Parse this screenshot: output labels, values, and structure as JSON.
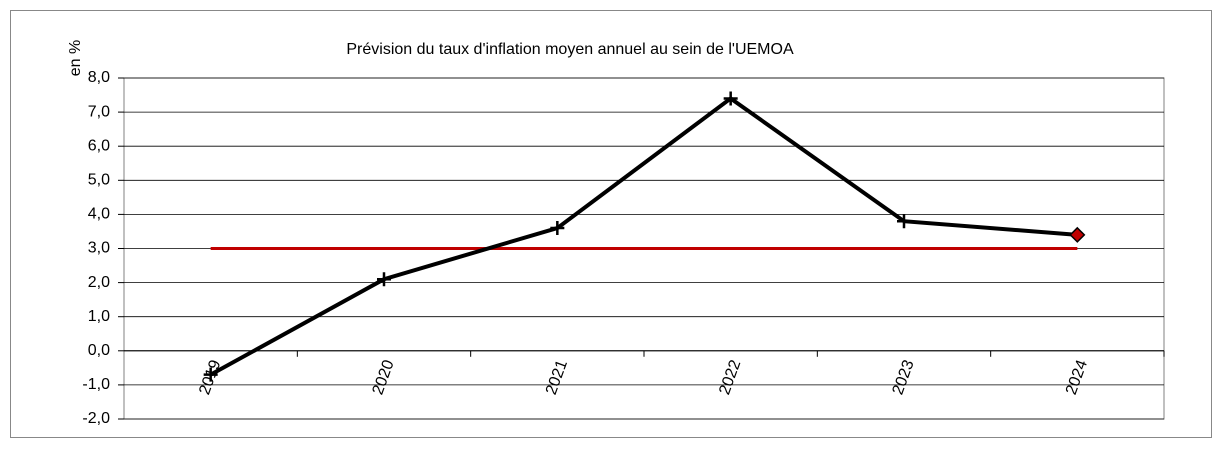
{
  "chart_data": {
    "type": "line",
    "title": "Prévision du taux d'inflation moyen annuel au sein de l'UEMOA",
    "y_label": "en %",
    "categories": [
      "2019",
      "2020",
      "2021",
      "2022",
      "2023",
      "2024"
    ],
    "series": [
      {
        "color": "#000000",
        "marker": "plus",
        "last_marker": "diamond",
        "last_marker_color": "#c00000",
        "values": [
          -0.7,
          2.1,
          3.6,
          7.4,
          3.8,
          3.4
        ]
      },
      {
        "color": "#c00000",
        "values": [
          3.0,
          3.0,
          3.0,
          3.0,
          3.0,
          3.0
        ]
      }
    ],
    "ylim": [
      -2,
      8
    ],
    "yticks": [
      {
        "value": -2,
        "label": "-2,0"
      },
      {
        "value": -1,
        "label": "-1,0"
      },
      {
        "value": 0,
        "label": "0,0"
      },
      {
        "value": 1,
        "label": "1,0"
      },
      {
        "value": 2,
        "label": "2,0"
      },
      {
        "value": 3,
        "label": "3,0"
      },
      {
        "value": 4,
        "label": "4,0"
      },
      {
        "value": 5,
        "label": "5,0"
      },
      {
        "value": 6,
        "label": "6,0"
      },
      {
        "value": 7,
        "label": "7,0"
      },
      {
        "value": 8,
        "label": "8,0"
      }
    ],
    "grid": true
  }
}
